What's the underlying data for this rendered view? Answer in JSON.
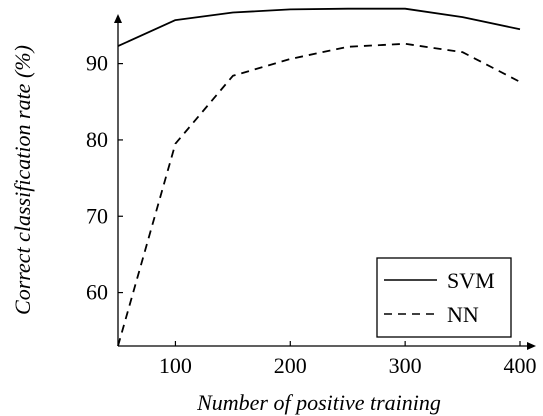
{
  "chart_data": {
    "type": "line",
    "title": "",
    "xlabel": "Number of positive training",
    "ylabel": "Correct classification rate (%)",
    "xlim": [
      50,
      400
    ],
    "ylim": [
      53,
      96.5
    ],
    "xticks": [
      100,
      200,
      300,
      400
    ],
    "yticks": [
      60,
      70,
      80,
      90
    ],
    "grid": false,
    "legend_position": "bottom-right",
    "series": [
      {
        "name": "SVM",
        "style": "solid",
        "color": "#000000",
        "x": [
          50,
          100,
          150,
          200,
          250,
          300,
          350,
          400
        ],
        "y": [
          92.3,
          95.7,
          96.7,
          97.1,
          97.2,
          97.2,
          96.1,
          94.5
        ]
      },
      {
        "name": "NN",
        "style": "dashed",
        "color": "#000000",
        "x": [
          50,
          100,
          150,
          200,
          250,
          300,
          350,
          400
        ],
        "y": [
          53.0,
          79.5,
          88.4,
          90.6,
          92.2,
          92.6,
          91.5,
          87.6
        ]
      }
    ]
  }
}
